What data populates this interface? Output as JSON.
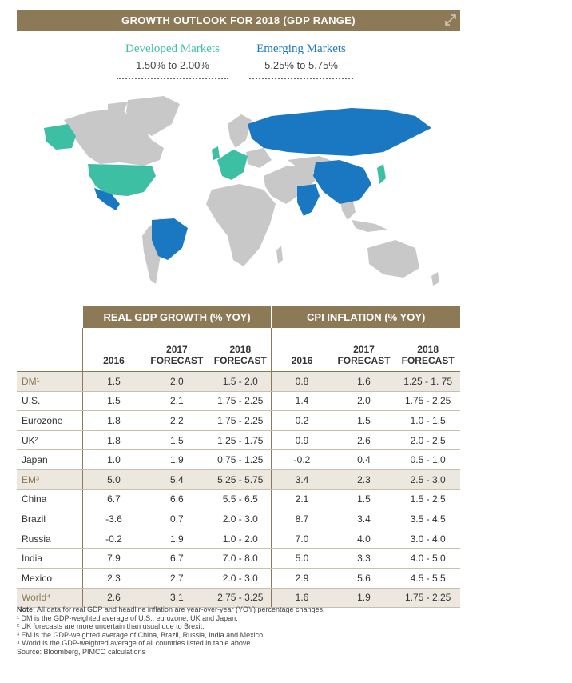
{
  "header": {
    "title": "GROWTH OUTLOOK FOR 2018 (GDP RANGE)"
  },
  "legend": {
    "developed": {
      "name": "Developed Markets",
      "range": "1.50% to 2.00%",
      "color": "#3dbfa4"
    },
    "emerging": {
      "name": "Emerging Markets",
      "range": "5.25% to 5.75%",
      "color": "#1a78c2"
    }
  },
  "table": {
    "group_headers": [
      "REAL GDP GROWTH (% YOY)",
      "CPI INFLATION (% YOY)"
    ],
    "columns": [
      "2016",
      "2017 FORECAST",
      "2018 FORECAST",
      "2016",
      "2017 FORECAST",
      "2018 FORECAST"
    ],
    "rows": [
      {
        "label": "DM¹",
        "values": [
          "1.5",
          "2.0",
          "1.5 - 2.0",
          "0.8",
          "1.6",
          "1.25 - 1. 75"
        ],
        "highlight": true
      },
      {
        "label": "U.S.",
        "values": [
          "1.5",
          "2.1",
          "1.75 - 2.25",
          "1.4",
          "2.0",
          "1.75 - 2.25"
        ],
        "highlight": false
      },
      {
        "label": "Eurozone",
        "values": [
          "1.8",
          "2.2",
          "1.75 - 2.25",
          "0.2",
          "1.5",
          "1.0 - 1.5"
        ],
        "highlight": false
      },
      {
        "label": "UK²",
        "values": [
          "1.8",
          "1.5",
          "1.25 - 1.75",
          "0.9",
          "2.6",
          "2.0 - 2.5"
        ],
        "highlight": false
      },
      {
        "label": "Japan",
        "values": [
          "1.0",
          "1.9",
          "0.75 - 1.25",
          "-0.2",
          "0.4",
          "0.5 - 1.0"
        ],
        "highlight": false
      },
      {
        "label": "EM³",
        "values": [
          "5.0",
          "5.4",
          "5.25 - 5.75",
          "3.4",
          "2.3",
          "2.5 - 3.0"
        ],
        "highlight": true
      },
      {
        "label": "China",
        "values": [
          "6.7",
          "6.6",
          "5.5 - 6.5",
          "2.1",
          "1.5",
          "1.5 - 2.5"
        ],
        "highlight": false
      },
      {
        "label": "Brazil",
        "values": [
          "-3.6",
          "0.7",
          "2.0 - 3.0",
          "8.7",
          "3.4",
          "3.5 - 4.5"
        ],
        "highlight": false
      },
      {
        "label": "Russia",
        "values": [
          "-0.2",
          "1.9",
          "1.0 - 2.0",
          "7.0",
          "4.0",
          "3.0 - 4.0"
        ],
        "highlight": false
      },
      {
        "label": "India",
        "values": [
          "7.9",
          "6.7",
          "7.0 - 8.0",
          "5.0",
          "3.3",
          "4.0 - 5.0"
        ],
        "highlight": false
      },
      {
        "label": "Mexico",
        "values": [
          "2.3",
          "2.7",
          "2.0 - 3.0",
          "2.9",
          "5.6",
          "4.5 - 5.5"
        ],
        "highlight": false
      },
      {
        "label": "World⁴",
        "values": [
          "2.6",
          "3.1",
          "2.75 - 3.25",
          "1.6",
          "1.9",
          "1.75 - 2.25"
        ],
        "highlight": true
      }
    ]
  },
  "notes": {
    "note_label": "Note:",
    "note_text": " All data for real GDP and headline inflation are year-over-year (YOY) percentage changes.",
    "footnotes": [
      "¹ DM is the GDP-weighted average of U.S., eurozone, UK and Japan.",
      "² UK forecasts are more uncertain than usual due to Brexit.",
      "³ EM is the GDP-weighted average of China, Brazil, Russia, India and Mexico.",
      "⁴ World is the GDP-weighted average of all countries listed in table above."
    ],
    "source": "Source: Bloomberg, PIMCO calculations"
  }
}
